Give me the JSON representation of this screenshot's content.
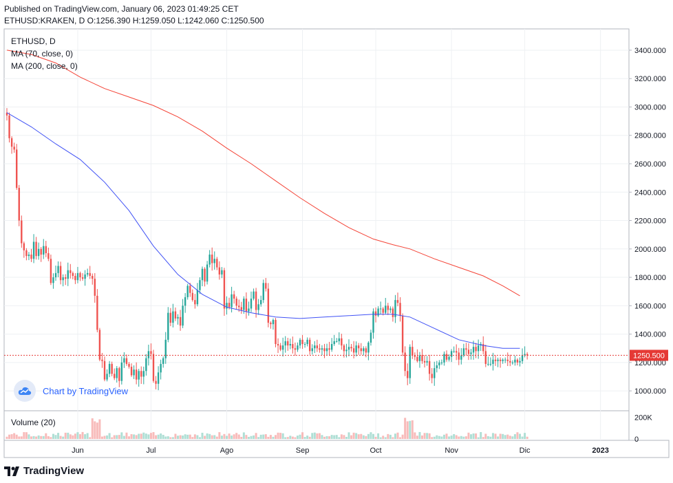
{
  "header": {
    "published": "Published on TradingView.com, January 06, 2023 01:49:25 CET",
    "ohlc": "ETHUSD:KRAKEN, D O:1256.390 H:1259.050 L:1242.060 C:1250.500"
  },
  "legend": {
    "symbol": "ETHUSD, D",
    "ma70": "MA (70, close, 0)",
    "ma200": "MA (200, close, 0)",
    "volume": "Volume (20)"
  },
  "watermark": {
    "text": "Chart by TradingView"
  },
  "brand": {
    "text": "TradingView"
  },
  "price_tag": "1250.500",
  "colors": {
    "up": "#26a69a",
    "down": "#ef5350",
    "ma70": "#3f51f5",
    "ma200": "#f44336",
    "price_line": "#e53935"
  },
  "chart_data": {
    "type": "candlestick",
    "title": "ETHUSD, D",
    "y_ticks": [
      "3400.000",
      "3200.000",
      "3000.000",
      "2800.000",
      "2600.000",
      "2400.000",
      "2200.000",
      "2000.000",
      "1800.000",
      "1600.000",
      "1400.000",
      "1200.000",
      "1000.000"
    ],
    "ylim": [
      860,
      3550
    ],
    "x_ticks": [
      "Jun",
      "Jul",
      "Ago",
      "Sep",
      "Oct",
      "Nov",
      "Dic",
      "2023"
    ],
    "x_tick_dates": [
      "2022-06-01",
      "2022-07-01",
      "2022-08-01",
      "2022-09-01",
      "2022-10-01",
      "2022-11-01",
      "2022-12-01",
      "2023-01-01"
    ],
    "start_date": "2022-05-03",
    "last_close": 1250.5,
    "volume_ticks": [
      "200K",
      "0"
    ],
    "volume_max": 230000,
    "closes": [
      2940,
      2780,
      2720,
      2700,
      2430,
      2200,
      2040,
      1990,
      1950,
      1960,
      1930,
      2050,
      1950,
      2000,
      1960,
      2020,
      1970,
      1930,
      1760,
      1800,
      1830,
      1880,
      1780,
      1800,
      1790,
      1850,
      1830,
      1810,
      1780,
      1830,
      1800,
      1790,
      1820,
      1830,
      1810,
      1790,
      1670,
      1430,
      1220,
      1210,
      1080,
      1120,
      1190,
      1120,
      1090,
      1160,
      1070,
      1200,
      1230,
      1190,
      1170,
      1110,
      1150,
      1080,
      1140,
      1100,
      1140,
      1230,
      1280,
      1260,
      1070,
      1050,
      1130,
      1190,
      1230,
      1360,
      1550,
      1480,
      1560,
      1510,
      1520,
      1460,
      1600,
      1660,
      1740,
      1690,
      1640,
      1610,
      1710,
      1780,
      1860,
      1770,
      1890,
      1960,
      1900,
      1930,
      1870,
      1820,
      1850,
      1580,
      1620,
      1590,
      1680,
      1650,
      1600,
      1590,
      1570,
      1650,
      1560,
      1580,
      1650,
      1700,
      1570,
      1610,
      1640,
      1760,
      1720,
      1480,
      1470,
      1500,
      1330,
      1320,
      1290,
      1320,
      1350,
      1320,
      1330,
      1300,
      1290,
      1320,
      1360,
      1330,
      1330,
      1360,
      1280,
      1300,
      1320,
      1300,
      1290,
      1300,
      1280,
      1300,
      1290,
      1330,
      1350,
      1350,
      1370,
      1320,
      1280,
      1290,
      1310,
      1300,
      1270,
      1320,
      1300,
      1280,
      1300,
      1270,
      1340,
      1410,
      1560,
      1530,
      1580,
      1580,
      1550,
      1600,
      1570,
      1580,
      1520,
      1640,
      1620,
      1530,
      1270,
      1140,
      1090,
      1310,
      1250,
      1240,
      1210,
      1250,
      1210,
      1200,
      1210,
      1120,
      1090,
      1160,
      1180,
      1200,
      1200,
      1260,
      1220,
      1240,
      1280,
      1280,
      1270,
      1220,
      1250,
      1300,
      1290,
      1260,
      1270,
      1310,
      1280,
      1320,
      1330,
      1280,
      1190,
      1190,
      1190,
      1220,
      1210,
      1220,
      1210,
      1220,
      1220,
      1210,
      1200,
      1200,
      1220,
      1200,
      1210,
      1250,
      1260,
      1250
    ],
    "series": [
      {
        "name": "MA (70, close, 0)",
        "values": [
          [
            0,
            2960
          ],
          [
            10,
            2860
          ],
          [
            20,
            2740
          ],
          [
            30,
            2630
          ],
          [
            40,
            2470
          ],
          [
            50,
            2270
          ],
          [
            60,
            2020
          ],
          [
            70,
            1820
          ],
          [
            80,
            1680
          ],
          [
            90,
            1590
          ],
          [
            100,
            1550
          ],
          [
            110,
            1520
          ],
          [
            120,
            1510
          ],
          [
            130,
            1520
          ],
          [
            140,
            1530
          ],
          [
            150,
            1540
          ],
          [
            158,
            1540
          ],
          [
            165,
            1520
          ],
          [
            175,
            1440
          ],
          [
            185,
            1360
          ],
          [
            195,
            1320
          ],
          [
            203,
            1300
          ],
          [
            210,
            1300
          ]
        ]
      },
      {
        "name": "MA (200, close, 0)",
        "values": [
          [
            0,
            3400
          ],
          [
            10,
            3370
          ],
          [
            20,
            3310
          ],
          [
            30,
            3210
          ],
          [
            40,
            3130
          ],
          [
            50,
            3070
          ],
          [
            60,
            3010
          ],
          [
            70,
            2930
          ],
          [
            80,
            2830
          ],
          [
            90,
            2710
          ],
          [
            100,
            2600
          ],
          [
            110,
            2480
          ],
          [
            120,
            2360
          ],
          [
            130,
            2250
          ],
          [
            140,
            2150
          ],
          [
            150,
            2070
          ],
          [
            158,
            2030
          ],
          [
            165,
            2000
          ],
          [
            175,
            1930
          ],
          [
            185,
            1870
          ],
          [
            195,
            1810
          ],
          [
            203,
            1740
          ],
          [
            210,
            1670
          ]
        ]
      }
    ]
  }
}
